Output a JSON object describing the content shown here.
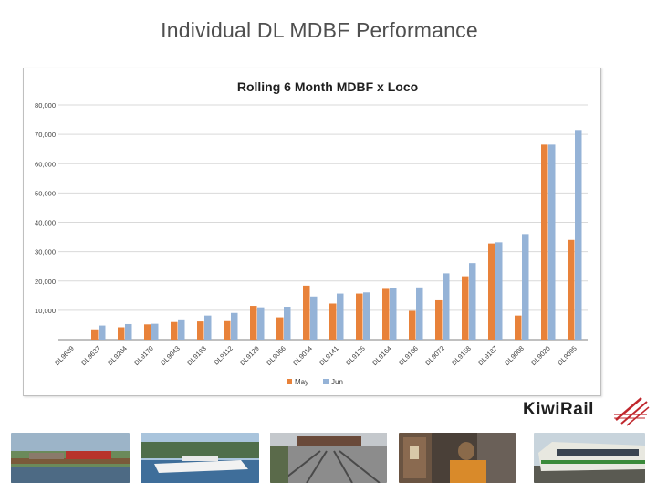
{
  "slide": {
    "title": "Individual DL MDBF Performance"
  },
  "logo": {
    "text": "KiwiRail"
  },
  "photos": [
    {
      "name": "train-bridge-photo"
    },
    {
      "name": "ferry-photo"
    },
    {
      "name": "rail-yard-photo"
    },
    {
      "name": "workshop-photo"
    },
    {
      "name": "worker-photo"
    },
    {
      "name": "commuter-train-photo"
    }
  ],
  "colors": {
    "may": "#e8823a",
    "jun": "#95b3d7",
    "grid": "#d9d9d9",
    "axis": "#808080"
  },
  "chart_data": {
    "type": "bar",
    "title": "Rolling 6 Month MDBF x Loco",
    "xlabel": "",
    "ylabel": "",
    "ylim": [
      0,
      80000
    ],
    "yticks": [
      0,
      10000,
      20000,
      30000,
      40000,
      50000,
      60000,
      70000,
      80000
    ],
    "ytick_labels": [
      "",
      "10,000",
      "20,000",
      "30,000",
      "40,000",
      "50,000",
      "60,000",
      "70,000",
      "80,000"
    ],
    "grid": true,
    "legend_position": "bottom-center",
    "categories": [
      "DL9689",
      "DL9637",
      "DL9204",
      "DL9170",
      "DL9043",
      "DL9193",
      "DL9112",
      "DL9129",
      "DL9066",
      "DL9014",
      "DL9141",
      "DL9135",
      "DL9164",
      "DL9106",
      "DL9072",
      "DL9158",
      "DL9187",
      "DL9008",
      "DL9020",
      "DL9095"
    ],
    "series": [
      {
        "name": "May",
        "values": [
          0,
          3500,
          4200,
          5200,
          6000,
          6200,
          6300,
          11500,
          7600,
          18400,
          12300,
          15700,
          17300,
          9800,
          13400,
          21600,
          32800,
          8200,
          66500,
          34000
        ]
      },
      {
        "name": "Jun",
        "values": [
          0,
          4800,
          5300,
          5400,
          6900,
          8200,
          9100,
          11000,
          11200,
          14700,
          15700,
          16100,
          17500,
          17800,
          22600,
          26100,
          33200,
          36000,
          66500,
          71500
        ]
      }
    ]
  }
}
